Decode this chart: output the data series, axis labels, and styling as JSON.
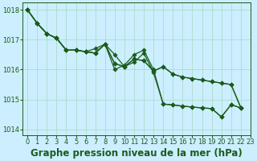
{
  "background_color": "#cceeff",
  "grid_color": "#aaddcc",
  "line_color": "#1a5c1a",
  "title": "Graphe pression niveau de la mer (hPa)",
  "xlim": [
    -0.5,
    23
  ],
  "ylim": [
    1013.8,
    1018.25
  ],
  "yticks": [
    1014,
    1015,
    1016,
    1017,
    1018
  ],
  "xticks": [
    0,
    1,
    2,
    3,
    4,
    5,
    6,
    7,
    8,
    9,
    10,
    11,
    12,
    13,
    14,
    15,
    16,
    17,
    18,
    19,
    20,
    21,
    22,
    23
  ],
  "series": [
    [
      1018.0,
      1017.55,
      1017.2,
      1017.05,
      1016.65,
      1016.65,
      1016.6,
      1016.7,
      1016.85,
      1016.5,
      1016.1,
      1016.25,
      1016.55,
      1015.9,
      1014.85,
      1014.82,
      1014.78,
      1014.75,
      1014.72,
      1014.7,
      1014.42,
      1014.83,
      1014.72
    ],
    [
      1018.0,
      1017.55,
      1017.2,
      1017.05,
      1016.65,
      1016.65,
      1016.6,
      1016.55,
      1016.85,
      1016.2,
      1016.1,
      1016.35,
      1016.3,
      1015.95,
      1016.1,
      1015.85,
      1015.75,
      1015.7,
      1015.65,
      1015.6,
      1015.55,
      1015.5,
      1014.73
    ],
    [
      1018.0,
      1017.55,
      1017.2,
      1017.05,
      1016.65,
      1016.65,
      1016.6,
      1016.55,
      1016.85,
      1016.2,
      1016.1,
      1016.35,
      1016.3,
      1015.95,
      1016.1,
      1015.85,
      1015.75,
      1015.7,
      1015.65,
      1015.6,
      1015.55,
      1015.5,
      1014.73
    ],
    [
      1018.0,
      1017.55,
      1017.2,
      1017.05,
      1016.65,
      1016.65,
      1016.6,
      1016.55,
      1016.85,
      1016.0,
      1016.15,
      1016.5,
      1016.65,
      1016.0,
      1014.85,
      1014.82,
      1014.78,
      1014.75,
      1014.72,
      1014.7,
      1014.42,
      1014.83,
      1014.72
    ]
  ],
  "marker_size": 2.8,
  "line_width": 0.9,
  "title_fontsize": 8.5,
  "tick_fontsize": 6.0
}
